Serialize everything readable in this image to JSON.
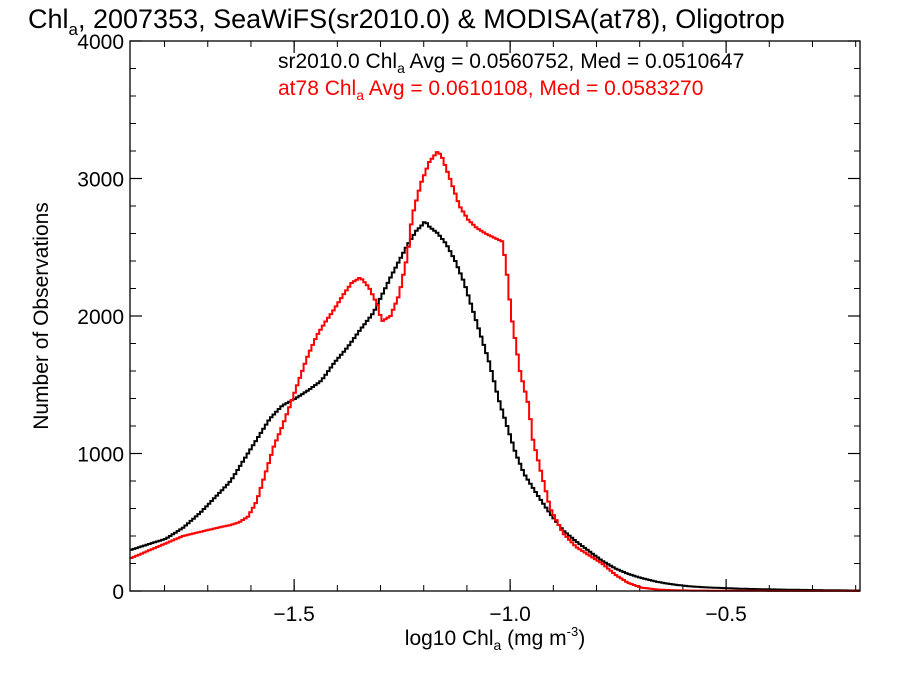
{
  "chart_data": {
    "type": "line",
    "title_main": "Chl",
    "title_sub": "a",
    "title_rest": ", 2007353, SeaWiFS(sr2010.0) & MODISA(at78), Oligotrop",
    "xlabel_main": "log10 Chl",
    "xlabel_sub": "a",
    "xlabel_units": " (mg m",
    "xlabel_sup": "-3",
    "xlabel_close": ")",
    "ylabel": "Number of Observations",
    "xlim": [
      -1.88,
      -0.19
    ],
    "ylim": [
      0,
      4000
    ],
    "x_ticks": [
      -1.5,
      -1.0,
      -0.5
    ],
    "x_tick_labels": [
      "−1.5",
      "−1.0",
      "−0.5"
    ],
    "y_ticks": [
      0,
      1000,
      2000,
      3000,
      4000
    ],
    "y_tick_labels": [
      "0",
      "1000",
      "2000",
      "3000",
      "4000"
    ],
    "x_minor_step": 0.1,
    "y_minor_step": 200,
    "series": [
      {
        "name": "sr2010.0",
        "color": "#000000",
        "legend": {
          "pre": "sr2010.0 Chl",
          "sub": "a",
          "post": " Avg = 0.0560752, Med = 0.0510647"
        },
        "points": [
          [
            -1.88,
            300
          ],
          [
            -1.84,
            340
          ],
          [
            -1.8,
            380
          ],
          [
            -1.76,
            460
          ],
          [
            -1.72,
            570
          ],
          [
            -1.68,
            700
          ],
          [
            -1.65,
            800
          ],
          [
            -1.62,
            950
          ],
          [
            -1.59,
            1100
          ],
          [
            -1.56,
            1250
          ],
          [
            -1.53,
            1350
          ],
          [
            -1.5,
            1400
          ],
          [
            -1.47,
            1460
          ],
          [
            -1.44,
            1530
          ],
          [
            -1.41,
            1660
          ],
          [
            -1.38,
            1770
          ],
          [
            -1.35,
            1900
          ],
          [
            -1.32,
            2020
          ],
          [
            -1.3,
            2150
          ],
          [
            -1.28,
            2280
          ],
          [
            -1.26,
            2400
          ],
          [
            -1.24,
            2520
          ],
          [
            -1.22,
            2620
          ],
          [
            -1.21,
            2650
          ],
          [
            -1.2,
            2690
          ],
          [
            -1.19,
            2650
          ],
          [
            -1.17,
            2600
          ],
          [
            -1.15,
            2520
          ],
          [
            -1.13,
            2400
          ],
          [
            -1.11,
            2250
          ],
          [
            -1.09,
            2050
          ],
          [
            -1.07,
            1850
          ],
          [
            -1.05,
            1650
          ],
          [
            -1.03,
            1400
          ],
          [
            -1.01,
            1200
          ],
          [
            -0.99,
            1000
          ],
          [
            -0.97,
            850
          ],
          [
            -0.94,
            700
          ],
          [
            -0.91,
            560
          ],
          [
            -0.88,
            440
          ],
          [
            -0.85,
            360
          ],
          [
            -0.82,
            290
          ],
          [
            -0.79,
            220
          ],
          [
            -0.76,
            165
          ],
          [
            -0.73,
            125
          ],
          [
            -0.7,
            95
          ],
          [
            -0.66,
            65
          ],
          [
            -0.62,
            45
          ],
          [
            -0.58,
            32
          ],
          [
            -0.54,
            25
          ],
          [
            -0.5,
            20
          ],
          [
            -0.45,
            15
          ],
          [
            -0.4,
            12
          ],
          [
            -0.35,
            9
          ],
          [
            -0.3,
            7
          ],
          [
            -0.25,
            5
          ],
          [
            -0.19,
            3
          ]
        ]
      },
      {
        "name": "at78",
        "color": "#ff0000",
        "legend": {
          "pre": "at78 Chl",
          "sub": "a",
          "post": " Avg = 0.0610108, Med = 0.0583270"
        },
        "points": [
          [
            -1.88,
            240
          ],
          [
            -1.85,
            280
          ],
          [
            -1.82,
            320
          ],
          [
            -1.79,
            360
          ],
          [
            -1.76,
            400
          ],
          [
            -1.72,
            430
          ],
          [
            -1.68,
            460
          ],
          [
            -1.65,
            480
          ],
          [
            -1.63,
            500
          ],
          [
            -1.61,
            540
          ],
          [
            -1.59,
            650
          ],
          [
            -1.57,
            850
          ],
          [
            -1.55,
            1050
          ],
          [
            -1.53,
            1200
          ],
          [
            -1.51,
            1370
          ],
          [
            -1.49,
            1550
          ],
          [
            -1.47,
            1720
          ],
          [
            -1.45,
            1860
          ],
          [
            -1.43,
            1960
          ],
          [
            -1.41,
            2050
          ],
          [
            -1.39,
            2150
          ],
          [
            -1.37,
            2240
          ],
          [
            -1.35,
            2280
          ],
          [
            -1.33,
            2210
          ],
          [
            -1.31,
            2080
          ],
          [
            -1.3,
            1960
          ],
          [
            -1.28,
            2000
          ],
          [
            -1.26,
            2150
          ],
          [
            -1.24,
            2450
          ],
          [
            -1.23,
            2720
          ],
          [
            -1.21,
            2960
          ],
          [
            -1.19,
            3120
          ],
          [
            -1.17,
            3200
          ],
          [
            -1.16,
            3150
          ],
          [
            -1.14,
            2980
          ],
          [
            -1.12,
            2800
          ],
          [
            -1.1,
            2700
          ],
          [
            -1.08,
            2640
          ],
          [
            -1.06,
            2600
          ],
          [
            -1.04,
            2570
          ],
          [
            -1.02,
            2540
          ],
          [
            -1.01,
            2300
          ],
          [
            -1.0,
            2000
          ],
          [
            -0.99,
            1800
          ],
          [
            -0.98,
            1600
          ],
          [
            -0.96,
            1350
          ],
          [
            -0.95,
            1100
          ],
          [
            -0.93,
            850
          ],
          [
            -0.91,
            600
          ],
          [
            -0.88,
            420
          ],
          [
            -0.85,
            320
          ],
          [
            -0.82,
            260
          ],
          [
            -0.79,
            200
          ],
          [
            -0.76,
            120
          ],
          [
            -0.73,
            60
          ],
          [
            -0.7,
            25
          ],
          [
            -0.66,
            10
          ],
          [
            -0.62,
            5
          ],
          [
            -0.58,
            3
          ],
          [
            -0.5,
            2
          ],
          [
            -0.4,
            1
          ],
          [
            -0.19,
            1
          ]
        ]
      }
    ]
  }
}
